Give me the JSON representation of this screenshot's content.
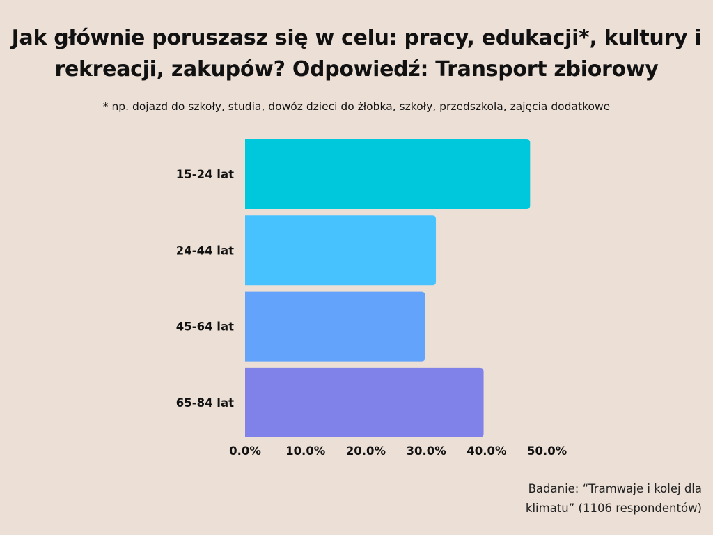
{
  "title": "Jak głównie poruszasz się w celu: pracy, edukacji*, kultury i rekreacji, zakupów? Odpowiedź: Transport zbiorowy",
  "subtitle": "* np. dojazd do szkoły, studia, dowóz dzieci do żłobka, szkoły, przedszkola, zajęcia dodatkowe",
  "footnote": "Badanie: “Tramwaje i kolej dla klimatu” (1106 respondentów)",
  "chart_data": {
    "type": "bar",
    "orientation": "horizontal",
    "title": "Jak głównie poruszasz się w celu: pracy, edukacji*, kultury i rekreacji, zakupów? Odpowiedź: Transport zbiorowy",
    "xlabel": "",
    "ylabel": "",
    "categories": [
      "15-24 lat",
      "24-44 lat",
      "45-64 lat",
      "65-84 lat"
    ],
    "values": [
      47.2,
      31.6,
      29.8,
      39.5
    ],
    "colors": [
      "#00c8dc",
      "#48c2ff",
      "#63a3fb",
      "#8082e9"
    ],
    "xlim": [
      0,
      50
    ],
    "xticks": [
      "0.0%",
      "10.0%",
      "20.0%",
      "30.0%",
      "40.0%",
      "50.0%"
    ],
    "tick_values": [
      0,
      10,
      20,
      30,
      40,
      50
    ],
    "grid": false,
    "legend": "none"
  }
}
